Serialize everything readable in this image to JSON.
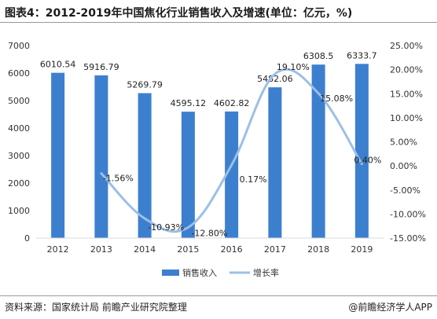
{
  "title": "图表4：2012-2019年中国焦化行业销售收入及增速(单位：亿元，%)",
  "source": "资料来源：国家统计局 前瞻产业研究院整理",
  "credit": "@前瞻经济学人APP",
  "colors": {
    "bar": "#3d7fcf",
    "line": "#9cbfe6",
    "text": "#333333",
    "grid": "#d9d9d9"
  },
  "chart_data": {
    "type": "bar",
    "categories": [
      "2012",
      "2013",
      "2014",
      "2015",
      "2016",
      "2017",
      "2018",
      "2019"
    ],
    "series": [
      {
        "name": "销售收入",
        "type": "bar",
        "axis": "left",
        "values": [
          6010.54,
          5916.79,
          5269.79,
          4595.12,
          4602.82,
          5482.06,
          6308.5,
          6333.7
        ],
        "labels": [
          "6010.54",
          "5916.79",
          "5269.79",
          "4595.12",
          "4602.82",
          "5482.06",
          "6308.5",
          "6333.7"
        ]
      },
      {
        "name": "增长率",
        "type": "line",
        "axis": "right",
        "values": [
          null,
          -1.56,
          -10.93,
          -12.8,
          0.17,
          19.1,
          15.08,
          0.4
        ],
        "labels": [
          "",
          "-1.56%",
          "-10.93%",
          "-12.80%",
          "0.17%",
          "19.10%",
          "15.08%",
          "0.40%"
        ]
      }
    ],
    "y_left": {
      "min": 0,
      "max": 7000,
      "step": 1000,
      "ticks": [
        "0",
        "1000",
        "2000",
        "3000",
        "4000",
        "5000",
        "6000",
        "7000"
      ]
    },
    "y_right": {
      "min": -15,
      "max": 25,
      "step": 5,
      "ticks": [
        "-15.00%",
        "-10.00%",
        "-5.00%",
        "0.00%",
        "5.00%",
        "10.00%",
        "15.00%",
        "20.00%",
        "25.00%"
      ]
    },
    "legend_position": "bottom",
    "grid": false
  }
}
